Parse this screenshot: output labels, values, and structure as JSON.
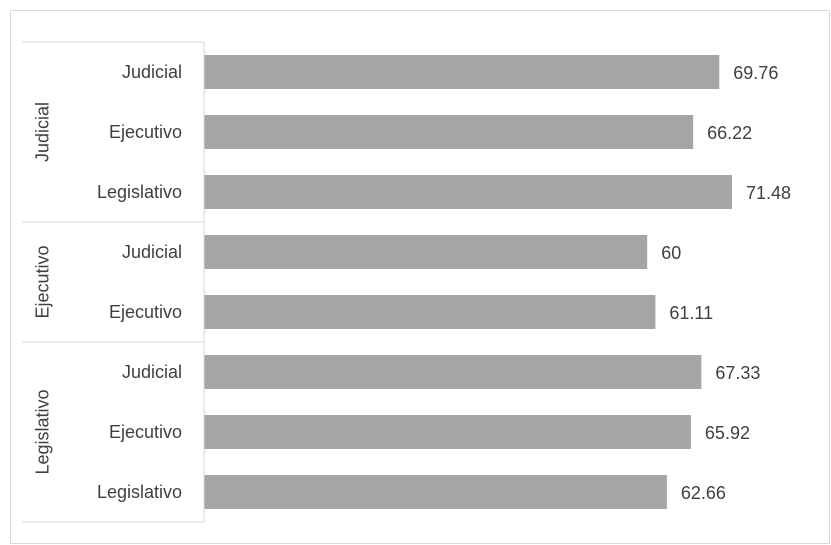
{
  "chart_data": {
    "type": "bar",
    "orientation": "horizontal",
    "title": "",
    "xlabel": "",
    "ylabel": "",
    "groups": [
      {
        "name": "Judicial",
        "categories": [
          "Judicial",
          "Ejecutivo",
          "Legislativo"
        ],
        "values": [
          69.76,
          66.22,
          71.48
        ]
      },
      {
        "name": "Ejecutivo",
        "categories": [
          "Judicial",
          "Ejecutivo"
        ],
        "values": [
          60,
          61.11
        ]
      },
      {
        "name": "Legislativo",
        "categories": [
          "Judicial",
          "Ejecutivo",
          "Legislativo"
        ],
        "values": [
          67.33,
          65.92,
          62.66
        ]
      }
    ],
    "data_labels": [
      "69.76",
      "66.22",
      "71.48",
      "60",
      "61.11",
      "67.33",
      "65.92",
      "62.66"
    ],
    "value_axis_visible": false,
    "grid": false,
    "legend": "none",
    "colors": {
      "bar": "#a5a5a5",
      "text": "#404040",
      "axis": "#d9d9d9"
    }
  }
}
